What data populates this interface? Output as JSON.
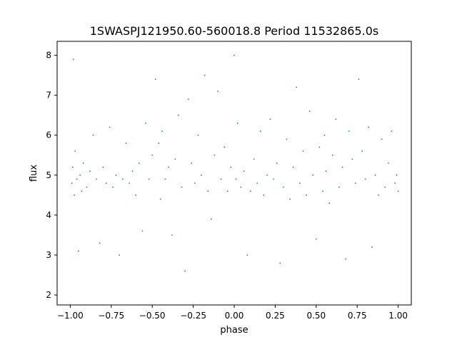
{
  "chart_data": {
    "type": "scatter",
    "title": "1SWASPJ121950.60-560018.8 Period 11532865.0s",
    "xlabel": "phase",
    "ylabel": "flux",
    "xlim": [
      -1.08,
      1.08
    ],
    "ylim": [
      1.75,
      8.35
    ],
    "xticks": [
      -1.0,
      -0.75,
      -0.5,
      -0.25,
      0.0,
      0.25,
      0.5,
      0.75,
      1.0
    ],
    "xtick_labels": [
      "−1.00",
      "−0.75",
      "−0.50",
      "−0.25",
      "0.00",
      "0.25",
      "0.50",
      "0.75",
      "1.00"
    ],
    "yticks": [
      2,
      3,
      4,
      5,
      6,
      7,
      8
    ],
    "ytick_labels": [
      "2",
      "3",
      "4",
      "5",
      "6",
      "7",
      "8"
    ],
    "grid": false,
    "legend": "none",
    "marker_color": "#1f77b4",
    "series": [
      {
        "points": [
          [
            -0.99,
            4.8
          ],
          [
            -0.985,
            5.2
          ],
          [
            -0.98,
            7.9
          ],
          [
            -0.975,
            4.5
          ],
          [
            -0.97,
            5.6
          ],
          [
            -0.96,
            4.9
          ],
          [
            -0.95,
            3.1
          ],
          [
            -0.94,
            5.0
          ],
          [
            -0.93,
            4.6
          ],
          [
            -0.92,
            5.3
          ],
          [
            -0.9,
            4.7
          ],
          [
            -0.88,
            5.1
          ],
          [
            -0.86,
            6.0
          ],
          [
            -0.84,
            4.9
          ],
          [
            -0.82,
            3.3
          ],
          [
            -0.8,
            5.2
          ],
          [
            -0.78,
            4.8
          ],
          [
            -0.76,
            6.2
          ],
          [
            -0.74,
            4.7
          ],
          [
            -0.72,
            5.0
          ],
          [
            -0.7,
            3.0
          ],
          [
            -0.68,
            4.9
          ],
          [
            -0.66,
            5.8
          ],
          [
            -0.64,
            4.8
          ],
          [
            -0.62,
            5.1
          ],
          [
            -0.6,
            4.5
          ],
          [
            -0.58,
            5.3
          ],
          [
            -0.56,
            3.6
          ],
          [
            -0.54,
            6.3
          ],
          [
            -0.52,
            4.9
          ],
          [
            -0.5,
            5.5
          ],
          [
            -0.48,
            7.4
          ],
          [
            -0.46,
            5.8
          ],
          [
            -0.45,
            4.4
          ],
          [
            -0.44,
            6.1
          ],
          [
            -0.42,
            4.9
          ],
          [
            -0.4,
            5.2
          ],
          [
            -0.38,
            3.5
          ],
          [
            -0.36,
            5.4
          ],
          [
            -0.34,
            6.5
          ],
          [
            -0.32,
            4.7
          ],
          [
            -0.3,
            2.6
          ],
          [
            -0.28,
            6.9
          ],
          [
            -0.26,
            5.3
          ],
          [
            -0.24,
            4.8
          ],
          [
            -0.22,
            6.0
          ],
          [
            -0.2,
            5.0
          ],
          [
            -0.18,
            7.5
          ],
          [
            -0.16,
            4.6
          ],
          [
            -0.14,
            3.9
          ],
          [
            -0.12,
            5.5
          ],
          [
            -0.1,
            7.1
          ],
          [
            -0.08,
            4.9
          ],
          [
            -0.06,
            5.7
          ],
          [
            -0.04,
            4.6
          ],
          [
            -0.02,
            5.2
          ],
          [
            0.0,
            8.0
          ],
          [
            0.01,
            4.9
          ],
          [
            0.02,
            6.3
          ],
          [
            0.04,
            4.7
          ],
          [
            0.06,
            5.1
          ],
          [
            0.08,
            3.0
          ],
          [
            0.1,
            4.6
          ],
          [
            0.12,
            5.4
          ],
          [
            0.14,
            4.8
          ],
          [
            0.16,
            6.1
          ],
          [
            0.18,
            4.5
          ],
          [
            0.2,
            5.0
          ],
          [
            0.22,
            6.4
          ],
          [
            0.24,
            4.9
          ],
          [
            0.26,
            5.3
          ],
          [
            0.28,
            2.8
          ],
          [
            0.3,
            4.7
          ],
          [
            0.32,
            5.9
          ],
          [
            0.34,
            4.4
          ],
          [
            0.36,
            5.2
          ],
          [
            0.38,
            7.2
          ],
          [
            0.4,
            4.8
          ],
          [
            0.42,
            5.6
          ],
          [
            0.44,
            4.5
          ],
          [
            0.46,
            6.6
          ],
          [
            0.48,
            5.0
          ],
          [
            0.5,
            3.4
          ],
          [
            0.52,
            5.7
          ],
          [
            0.54,
            4.6
          ],
          [
            0.55,
            6.0
          ],
          [
            0.56,
            5.1
          ],
          [
            0.58,
            4.3
          ],
          [
            0.6,
            5.5
          ],
          [
            0.62,
            6.4
          ],
          [
            0.64,
            4.7
          ],
          [
            0.66,
            5.2
          ],
          [
            0.68,
            2.9
          ],
          [
            0.7,
            6.1
          ],
          [
            0.72,
            5.4
          ],
          [
            0.74,
            4.8
          ],
          [
            0.76,
            7.4
          ],
          [
            0.78,
            5.6
          ],
          [
            0.8,
            4.9
          ],
          [
            0.82,
            6.2
          ],
          [
            0.84,
            3.2
          ],
          [
            0.86,
            5.0
          ],
          [
            0.88,
            4.5
          ],
          [
            0.9,
            5.9
          ],
          [
            0.92,
            4.7
          ],
          [
            0.94,
            5.3
          ],
          [
            0.96,
            6.1
          ],
          [
            0.98,
            4.8
          ],
          [
            0.99,
            5.0
          ],
          [
            1.0,
            4.6
          ]
        ]
      }
    ]
  }
}
